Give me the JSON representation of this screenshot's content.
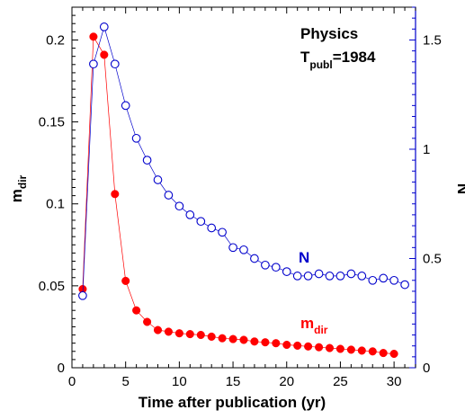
{
  "colors": {
    "m_dir": "#ff0000",
    "N": "#0000cc",
    "axis": "#000000",
    "right_axis": "#0000cc"
  },
  "chart_data": {
    "type": "scatter",
    "title": "",
    "xlabel": "Time after publication (yr)",
    "ylabel_left": {
      "main": "m",
      "sub": "dir"
    },
    "ylabel_right": "N",
    "xlim": [
      0,
      32
    ],
    "xticks": [
      0,
      5,
      10,
      15,
      20,
      25,
      30
    ],
    "ylim_left": [
      0,
      0.22
    ],
    "yticks_left": [
      0,
      0.05,
      0.1,
      0.15,
      0.2
    ],
    "ytick_labels_left": [
      "0",
      "0.05",
      "0.1",
      "0.15",
      "0.2"
    ],
    "ylim_right": [
      0,
      1.65
    ],
    "yticks_right": [
      0,
      0.5,
      1,
      1.5
    ],
    "ytick_labels_right": [
      "0",
      "0.5",
      "1",
      "1.5"
    ],
    "grid": false,
    "legend": "none",
    "annotations": {
      "field": "Physics",
      "tpubl_prefix": "T",
      "tpubl_sub": "publ",
      "tpubl_value": "=1984",
      "label_N": "N",
      "label_mdir_main": "m",
      "label_mdir_sub": "dir"
    },
    "series": [
      {
        "name": "m_dir",
        "axis": "left",
        "marker": "filled-circle",
        "x": [
          1,
          2,
          3,
          4,
          5,
          6,
          7,
          8,
          9,
          10,
          11,
          12,
          13,
          14,
          15,
          16,
          17,
          18,
          19,
          20,
          21,
          22,
          23,
          24,
          25,
          26,
          27,
          28,
          29,
          30
        ],
        "y": [
          0.048,
          0.202,
          0.191,
          0.106,
          0.053,
          0.035,
          0.028,
          0.023,
          0.022,
          0.021,
          0.0205,
          0.02,
          0.019,
          0.018,
          0.0175,
          0.017,
          0.016,
          0.0155,
          0.015,
          0.014,
          0.0135,
          0.013,
          0.0125,
          0.012,
          0.0115,
          0.011,
          0.0105,
          0.01,
          0.009,
          0.0085
        ]
      },
      {
        "name": "N",
        "axis": "right",
        "marker": "open-circle",
        "x": [
          1,
          2,
          3,
          4,
          5,
          6,
          7,
          8,
          9,
          10,
          11,
          12,
          13,
          14,
          15,
          16,
          17,
          18,
          19,
          20,
          21,
          22,
          23,
          24,
          25,
          26,
          27,
          28,
          29,
          30,
          31
        ],
        "y": [
          0.33,
          1.39,
          1.56,
          1.39,
          1.2,
          1.05,
          0.95,
          0.86,
          0.79,
          0.74,
          0.7,
          0.67,
          0.64,
          0.62,
          0.55,
          0.54,
          0.5,
          0.47,
          0.46,
          0.44,
          0.42,
          0.42,
          0.43,
          0.42,
          0.42,
          0.43,
          0.42,
          0.4,
          0.41,
          0.4,
          0.38
        ]
      }
    ]
  }
}
